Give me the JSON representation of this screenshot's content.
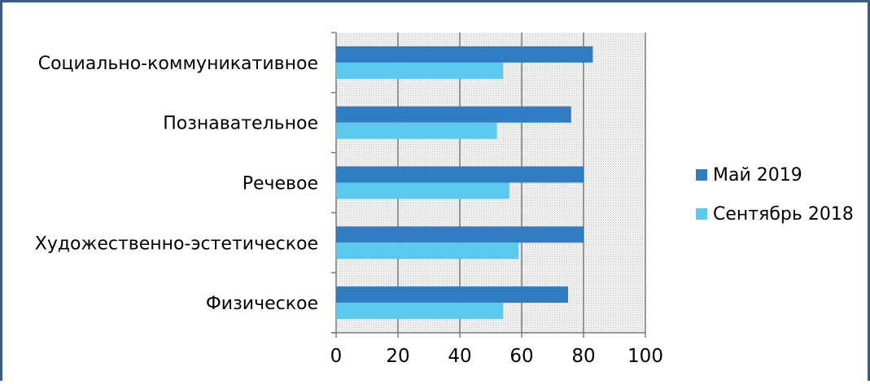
{
  "chart_data": {
    "type": "bar",
    "orientation": "horizontal",
    "categories": [
      "Социально-коммуникативное",
      "Познавательное",
      "Речевое",
      "Художественно-эстетическое",
      "Физическое"
    ],
    "series": [
      {
        "name": "Май 2019",
        "values": [
          83,
          76,
          80,
          80,
          75
        ],
        "color": "#2f7cc2"
      },
      {
        "name": "Сентябрь 2018",
        "values": [
          54,
          52,
          56,
          59,
          54
        ],
        "color": "#5bc9ee"
      }
    ],
    "xlim": [
      0,
      100
    ],
    "xticks": [
      "0",
      "20",
      "40",
      "60",
      "80",
      "100"
    ],
    "grid": true,
    "legend_position": "right"
  }
}
